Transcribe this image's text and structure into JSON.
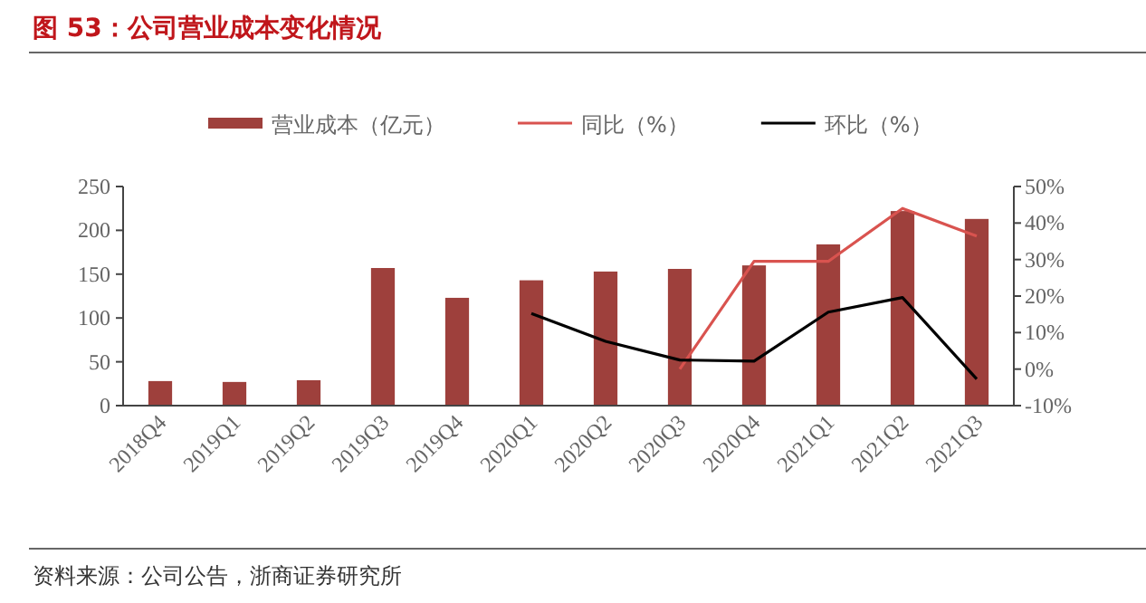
{
  "chart_data": {
    "type": "bar",
    "title": "图 53：公司营业成本变化情况",
    "categories": [
      "2018Q4",
      "2019Q1",
      "2019Q2",
      "2019Q3",
      "2019Q4",
      "2020Q1",
      "2020Q2",
      "2020Q3",
      "2020Q4",
      "2021Q1",
      "2021Q2",
      "2021Q3"
    ],
    "series": [
      {
        "name": "营业成本（亿元）",
        "color": "#9e403c",
        "values": [
          28,
          27,
          29,
          157,
          123,
          143,
          153,
          156,
          160,
          184,
          222,
          213
        ]
      },
      {
        "name": "同比（%）",
        "type": "line",
        "axis": "y2",
        "color": "#d9534f",
        "values": [
          null,
          null,
          null,
          null,
          null,
          null,
          null,
          0,
          29.5,
          29.5,
          44,
          36.4
        ]
      },
      {
        "name": "环比（%）",
        "type": "line",
        "axis": "y2",
        "color": "#000000",
        "values": [
          null,
          null,
          null,
          null,
          null,
          15.2,
          7.6,
          2.5,
          2.2,
          15.6,
          19.6,
          -2.7
        ]
      }
    ],
    "ylim": [
      0,
      250
    ],
    "yticks": [
      0,
      50,
      100,
      150,
      200,
      250
    ],
    "y2lim": [
      -10,
      50
    ],
    "y2ticks": [
      {
        "value": -10,
        "label": "-10%"
      },
      {
        "value": 0,
        "label": "0%"
      },
      {
        "value": 10,
        "label": "10%"
      },
      {
        "value": 20,
        "label": "20%"
      },
      {
        "value": 30,
        "label": "30%"
      },
      {
        "value": 40,
        "label": "40%"
      },
      {
        "value": 50,
        "label": "50%"
      }
    ],
    "legend": "top",
    "grid": false,
    "annotations": [
      "资料来源：公司公告，浙商证券研究所"
    ]
  }
}
